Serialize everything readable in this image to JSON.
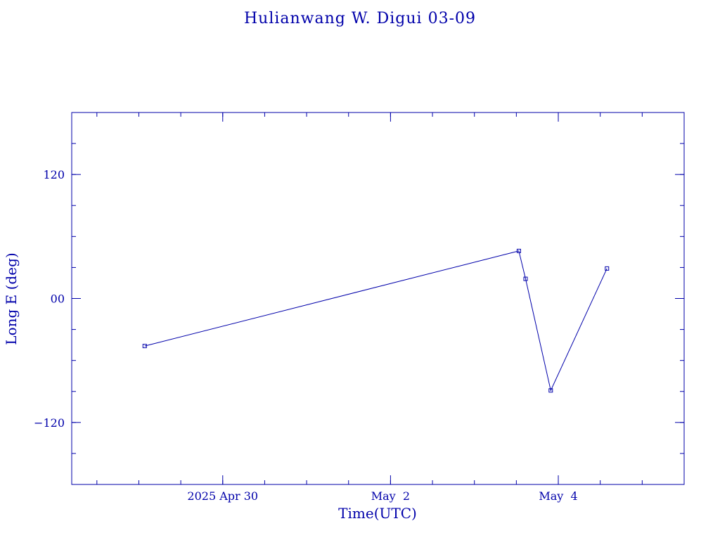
{
  "chart_data": {
    "type": "line",
    "title": "Hulianwang W. Digui 03-09",
    "xlabel": "Time(UTC)",
    "ylabel": "Long E (deg)",
    "x_ticks": [
      {
        "label": "2025 Apr 30",
        "day": 30.0
      },
      {
        "label": "May  2",
        "day": 32.0
      },
      {
        "label": "May  4",
        "day": 34.0
      }
    ],
    "y_ticks": [
      {
        "label": "120",
        "value": 120
      },
      {
        "label": "00",
        "value": 0
      },
      {
        "label": "−120",
        "value": -120
      }
    ],
    "x_range_day": [
      28.2,
      35.5
    ],
    "ylim": [
      -180,
      180
    ],
    "x_minor_step_day": 0.5,
    "y_minor_step": 30,
    "color": "#0000aa",
    "series": [
      {
        "points": [
          {
            "day": 29.07,
            "value": -46
          },
          {
            "day": 33.53,
            "value": 46
          },
          {
            "day": 33.61,
            "value": 19
          },
          {
            "day": 33.91,
            "value": -89
          },
          {
            "day": 34.58,
            "value": 29
          }
        ]
      }
    ],
    "grid": false,
    "legend": "none"
  }
}
